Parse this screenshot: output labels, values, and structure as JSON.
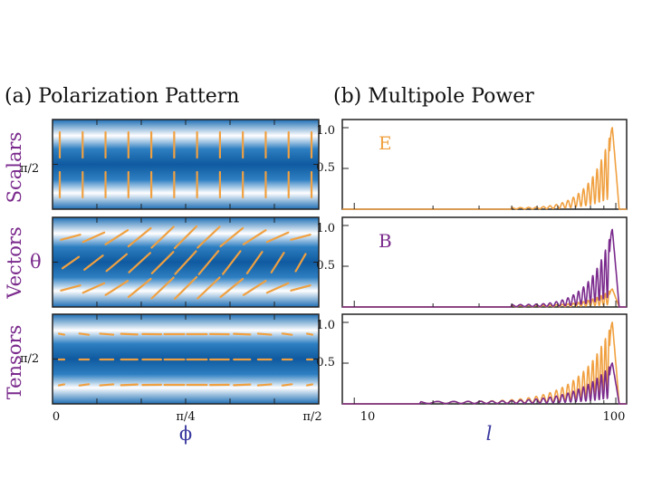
{
  "titles": {
    "left": "(a) Polarization Pattern",
    "right": "(b) Multipole Power"
  },
  "row_labels": [
    "Scalars",
    "Vectors",
    "Tensors"
  ],
  "left_axis": {
    "y_tick": "π/2",
    "theta_label": "θ",
    "x_ticks": [
      "0",
      "π/4",
      "π/2"
    ],
    "x_label": "ϕ"
  },
  "right_axis": {
    "y_ticks": [
      "1.0",
      "0.5"
    ],
    "x_ticks": [
      "10",
      "100"
    ],
    "x_label": "l"
  },
  "panel_labels": [
    "E",
    "B"
  ],
  "colors": {
    "orange": "#f0a040",
    "purple": "#7a2a8c",
    "blue_dark": "#1f6fb5",
    "blue_light": "#ffffff"
  },
  "chart_data": [
    {
      "type": "heatmap",
      "name": "scalars-pattern",
      "title": "(a) Polarization Pattern",
      "xlabel": "ϕ",
      "ylabel": "",
      "xlim": [
        0,
        1.5708
      ],
      "ylim": [
        0,
        3.1416
      ],
      "tick_labels_x": [
        "0",
        "π/4",
        "π/2"
      ],
      "tick_labels_y": [
        "π/2"
      ],
      "stick_orientation": "vertical",
      "stick_rows": 2
    },
    {
      "type": "heatmap",
      "name": "vectors-pattern",
      "xlabel": "ϕ",
      "ylabel": "θ",
      "stick_orientation": "diagonal",
      "stick_rows": 3
    },
    {
      "type": "heatmap",
      "name": "tensors-pattern",
      "xlabel": "ϕ",
      "ylabel": "",
      "tick_labels_y": [
        "π/2"
      ],
      "stick_orientation": "horizontal",
      "stick_rows": 3
    },
    {
      "type": "line",
      "name": "scalars-power",
      "title": "(b) Multipole Power",
      "label": "E",
      "xscale": "log",
      "xlim": [
        9,
        110
      ],
      "ylim": [
        0,
        1.1
      ],
      "series": [
        {
          "name": "E",
          "color": "orange",
          "peak_l": 97,
          "peak": 1.0,
          "start_l": 40,
          "amp_start": 0.02
        }
      ]
    },
    {
      "type": "line",
      "name": "vectors-power",
      "label": "B",
      "xscale": "log",
      "xlim": [
        9,
        110
      ],
      "ylim": [
        0,
        1.1
      ],
      "series": [
        {
          "name": "E",
          "color": "orange",
          "peak_l": 97,
          "peak": 0.22,
          "start_l": 40,
          "amp_start": 0.02
        },
        {
          "name": "B",
          "color": "purple",
          "peak_l": 97,
          "peak": 0.95,
          "start_l": 40,
          "amp_start": 0.03
        }
      ]
    },
    {
      "type": "line",
      "name": "tensors-power",
      "xscale": "log",
      "xlim": [
        9,
        110
      ],
      "ylim": [
        0,
        1.1
      ],
      "xlabel": "l",
      "series": [
        {
          "name": "E",
          "color": "orange",
          "peak_l": 97,
          "peak": 1.0,
          "start_l": 18,
          "amp_start": 0.03
        },
        {
          "name": "B",
          "color": "purple",
          "peak_l": 97,
          "peak": 0.5,
          "start_l": 18,
          "amp_start": 0.03
        }
      ]
    }
  ]
}
